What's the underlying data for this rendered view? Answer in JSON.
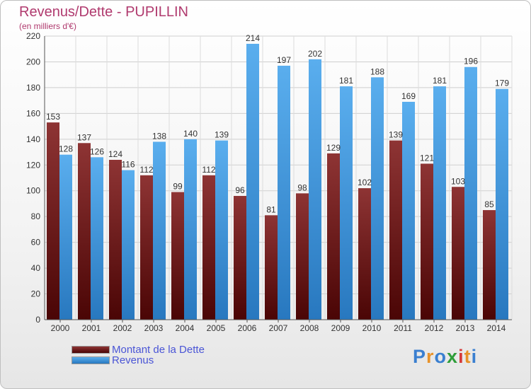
{
  "chart_data": {
    "type": "bar",
    "title": "Revenus/Dette - PUPILLIN",
    "subtitle": "(en milliers d'€)",
    "categories": [
      "2000",
      "2001",
      "2002",
      "2003",
      "2004",
      "2005",
      "2006",
      "2007",
      "2008",
      "2009",
      "2010",
      "2011",
      "2012",
      "2013",
      "2014"
    ],
    "series": [
      {
        "name": "Montant de la Dette",
        "color": "#7a1a1a",
        "values": [
          153,
          137,
          124,
          112,
          99,
          112,
          96,
          81,
          98,
          129,
          102,
          139,
          121,
          103,
          85
        ]
      },
      {
        "name": "Revenus",
        "color": "#4a9fe0",
        "values": [
          128,
          126,
          116,
          138,
          140,
          139,
          214,
          197,
          202,
          181,
          188,
          169,
          181,
          196,
          179
        ]
      }
    ],
    "ylim": [
      0,
      220
    ],
    "yticks": [
      0,
      20,
      40,
      60,
      80,
      100,
      120,
      140,
      160,
      180,
      200,
      220
    ],
    "grid": true,
    "legend_position": "bottom-left"
  },
  "logo": {
    "letters": [
      "P",
      "r",
      "o",
      "x",
      "i",
      "t",
      "i"
    ],
    "colors": [
      "#3a7fd0",
      "#e8932a",
      "#3a7fd0",
      "#2f9e3a",
      "#d63a3a",
      "#e8932a",
      "#3a7fd0"
    ]
  }
}
